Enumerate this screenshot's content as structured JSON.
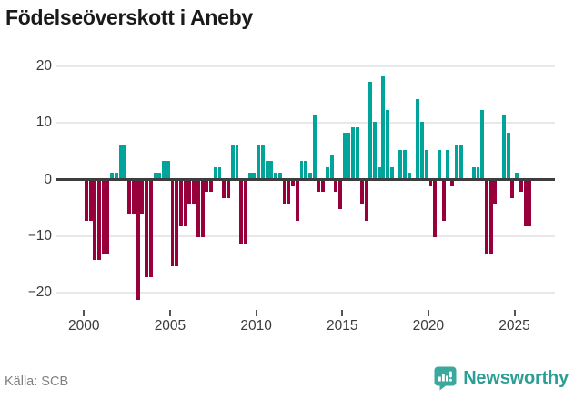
{
  "title": "Födelseöverskott i Aneby",
  "footer": {
    "source": "Källa: SCB",
    "brand": "Newsworthy",
    "brand_color": "#3aa89d"
  },
  "chart_data": {
    "type": "bar",
    "title": "Födelseöverskott i Aneby",
    "xlabel": "",
    "ylabel": "",
    "period": "quarterly",
    "start_year": 2000,
    "grid": "horizontal",
    "ylim": [
      -23,
      21
    ],
    "y_ticks": [
      20,
      10,
      0,
      -10,
      -20
    ],
    "y_tick_labels": [
      "20",
      "10",
      "0",
      "−10",
      "−20"
    ],
    "x_tick_years": [
      2000,
      2005,
      2010,
      2015,
      2020,
      2025
    ],
    "x_tick_labels": [
      "2000",
      "2005",
      "2010",
      "2015",
      "2020",
      "2025"
    ],
    "positive_color": "#00a49a",
    "negative_color": "#98003c",
    "values": [
      -7,
      -7,
      -14,
      -14,
      -13,
      -13,
      1,
      1,
      6,
      6,
      -6,
      -6,
      -21,
      -6,
      -17,
      -17,
      1,
      1,
      3,
      3,
      -15,
      -15,
      -8,
      -8,
      -4,
      -4,
      -10,
      -10,
      -2,
      -2,
      2,
      2,
      -3,
      -3,
      6,
      6,
      -11,
      -11,
      1,
      1,
      6,
      6,
      3,
      3,
      1,
      1,
      -4,
      -4,
      -1,
      -7,
      3,
      3,
      1,
      11,
      -2,
      -2,
      2,
      4,
      -2,
      -5,
      8,
      8,
      9,
      9,
      -4,
      -7,
      17,
      10,
      2,
      18,
      12,
      2,
      0,
      5,
      5,
      1,
      0,
      14,
      10,
      5,
      -1,
      -10,
      5,
      -7,
      5,
      -1,
      6,
      6,
      0,
      0,
      2,
      2,
      12,
      -13,
      -13,
      -4,
      0,
      11,
      8,
      -3,
      1,
      -2,
      -8,
      -8
    ]
  }
}
